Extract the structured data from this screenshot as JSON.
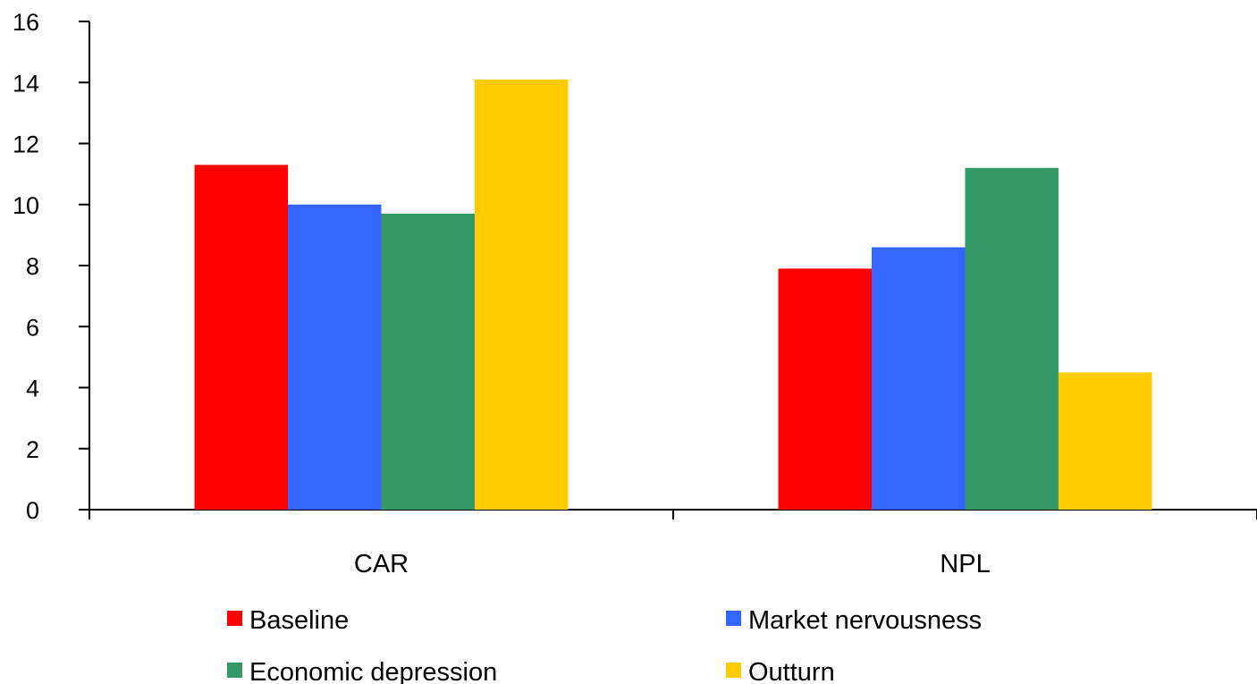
{
  "chart_data": {
    "type": "bar",
    "title": "",
    "xlabel": "",
    "ylabel": "",
    "categories": [
      "CAR",
      "NPL"
    ],
    "ylim": [
      0,
      16
    ],
    "yticks": [
      0,
      2,
      4,
      6,
      8,
      10,
      12,
      14,
      16
    ],
    "grid": false,
    "legend_position": "bottom",
    "series": [
      {
        "name": "Baseline",
        "values": [
          11.3,
          7.9
        ],
        "color": "#ff0000"
      },
      {
        "name": "Market nervousness",
        "values": [
          10.0,
          8.6
        ],
        "color": "#3366ff"
      },
      {
        "name": "Economic depression",
        "values": [
          9.7,
          11.2
        ],
        "color": "#339966"
      },
      {
        "name": "Outturn",
        "values": [
          14.1,
          4.5
        ],
        "color": "#ffcc00"
      }
    ]
  }
}
